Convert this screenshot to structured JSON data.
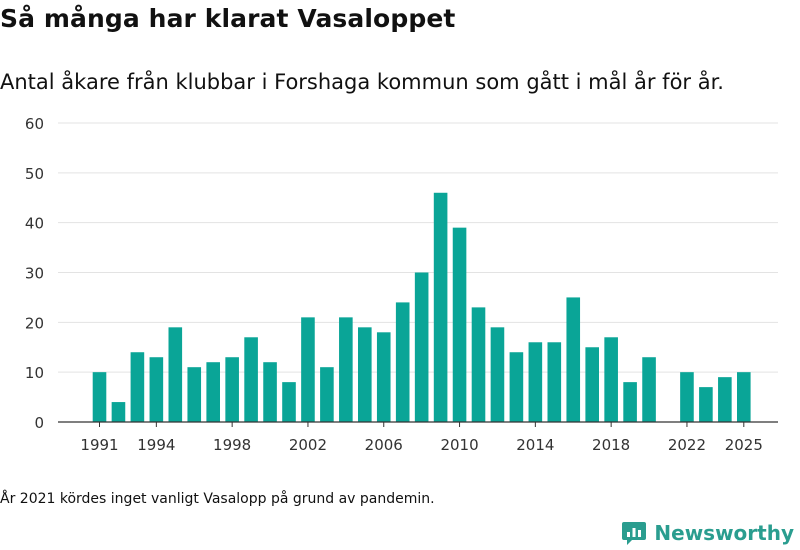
{
  "header": {
    "title": "Så många har klarat Vasaloppet",
    "subtitle": "Antal åkare från klubbar i Forshaga kommun som gått i mål år för år."
  },
  "footer": {
    "note": "År 2021 kördes inget vanligt Vasalopp på grund av pandemin.",
    "brand": "Newsworthy"
  },
  "colors": {
    "bar": "#0aa597",
    "grid": "#e3e3e3",
    "axis": "#333333",
    "brand": "#2a9d8f"
  },
  "chart_data": {
    "type": "bar",
    "title": "Så många har klarat Vasaloppet",
    "xlabel": "",
    "ylabel": "",
    "ylim": [
      0,
      60
    ],
    "yticks": [
      0,
      10,
      20,
      30,
      40,
      50,
      60
    ],
    "xticks": [
      "1991",
      "1994",
      "1998",
      "2002",
      "2006",
      "2010",
      "2014",
      "2018",
      "2022",
      "2025"
    ],
    "categories": [
      "1991",
      "1992",
      "1993",
      "1994",
      "1995",
      "1996",
      "1997",
      "1998",
      "1999",
      "2000",
      "2001",
      "2002",
      "2003",
      "2004",
      "2005",
      "2006",
      "2007",
      "2008",
      "2009",
      "2010",
      "2011",
      "2012",
      "2013",
      "2014",
      "2015",
      "2016",
      "2017",
      "2018",
      "2019",
      "2020",
      "2021",
      "2022",
      "2023",
      "2024",
      "2025"
    ],
    "values": [
      10,
      4,
      14,
      13,
      19,
      11,
      12,
      13,
      17,
      12,
      8,
      21,
      11,
      21,
      19,
      18,
      24,
      30,
      46,
      39,
      23,
      19,
      14,
      16,
      16,
      25,
      15,
      17,
      8,
      13,
      null,
      10,
      7,
      9,
      10
    ],
    "grid": true
  }
}
